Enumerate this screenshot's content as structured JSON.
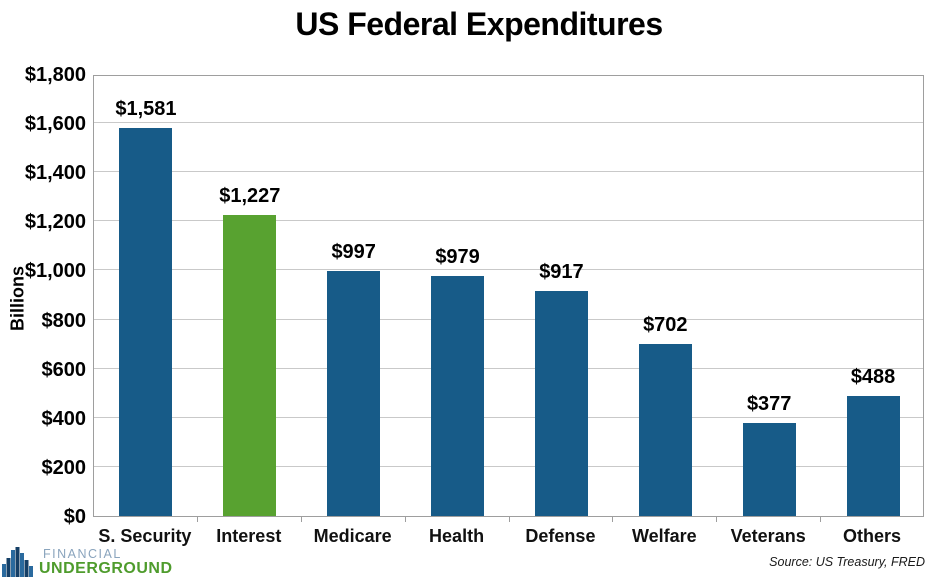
{
  "chart_data": {
    "type": "bar",
    "title": "US Federal Expenditures",
    "ylabel": "Billions",
    "xlabel": "",
    "categories": [
      "S. Security",
      "Interest",
      "Medicare",
      "Health",
      "Defense",
      "Welfare",
      "Veterans",
      "Others"
    ],
    "values": [
      1581,
      1227,
      997,
      979,
      917,
      702,
      377,
      488
    ],
    "data_labels": [
      "$1,581",
      "$1,227",
      "$997",
      "$979",
      "$917",
      "$702",
      "$377",
      "$488"
    ],
    "bar_colors": [
      "#175b88",
      "#58a230",
      "#175b88",
      "#175b88",
      "#175b88",
      "#175b88",
      "#175b88",
      "#175b88"
    ],
    "ylim": [
      0,
      1800
    ],
    "ytick_step": 200,
    "ytick_labels": [
      "$0",
      "$200",
      "$400",
      "$600",
      "$800",
      "$1,000",
      "$1,200",
      "$1,400",
      "$1,600",
      "$1,800"
    ],
    "grid": true,
    "legend": false
  },
  "colors": {
    "bar_default": "#175b88",
    "bar_highlight": "#58a230",
    "gridline": "#c9c9c9",
    "axis_border": "#9e9e9e",
    "logo_financial": "#8aa4bd",
    "logo_underground": "#4f9c2d"
  },
  "footer": {
    "logo_line1": "FINANCIAL",
    "logo_line2": "UNDERGROUND",
    "source": "Source: US Treasury, FRED"
  }
}
